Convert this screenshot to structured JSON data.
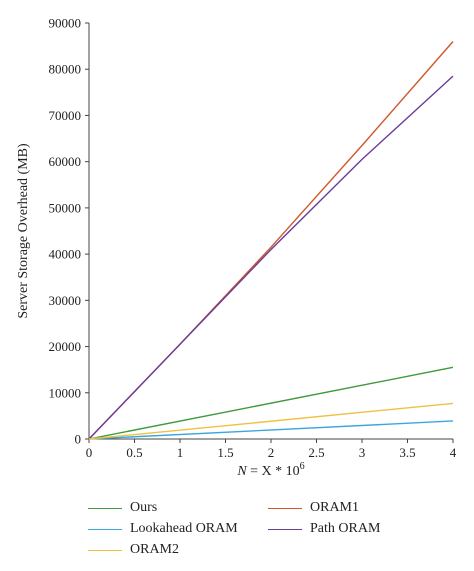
{
  "chart_data": {
    "type": "line",
    "xlabel": {
      "italic": "N",
      "rest": " = X * 10",
      "sup": "6"
    },
    "ylabel": "Server Storage Overhead (MB)",
    "xlim": [
      0,
      4
    ],
    "ylim": [
      0,
      90000
    ],
    "xticks": [
      "0",
      "0.5",
      "1",
      "1.5",
      "2",
      "2.5",
      "3",
      "3.5",
      "4"
    ],
    "yticks": [
      "0",
      "10000",
      "20000",
      "30000",
      "40000",
      "50000",
      "60000",
      "70000",
      "80000",
      "90000"
    ],
    "grid": false,
    "legend_position": "bottom",
    "series": [
      {
        "name": "Ours",
        "color": "#3d9a3d",
        "x": [
          0,
          4
        ],
        "y": [
          0,
          15500
        ]
      },
      {
        "name": "ORAM1",
        "color": "#d0572b",
        "x": [
          0,
          1,
          2,
          3,
          4
        ],
        "y": [
          0,
          20500,
          41500,
          63500,
          86000
        ]
      },
      {
        "name": "Lookahead ORAM",
        "color": "#3ba7dc",
        "x": [
          0,
          4
        ],
        "y": [
          0,
          3900
        ]
      },
      {
        "name": "Path ORAM",
        "color": "#6a3d9a",
        "x": [
          0,
          1,
          2,
          3,
          4
        ],
        "y": [
          0,
          20500,
          41000,
          60500,
          78500
        ]
      },
      {
        "name": "ORAM2",
        "color": "#f0c040",
        "x": [
          0,
          4
        ],
        "y": [
          0,
          7700
        ]
      }
    ]
  }
}
